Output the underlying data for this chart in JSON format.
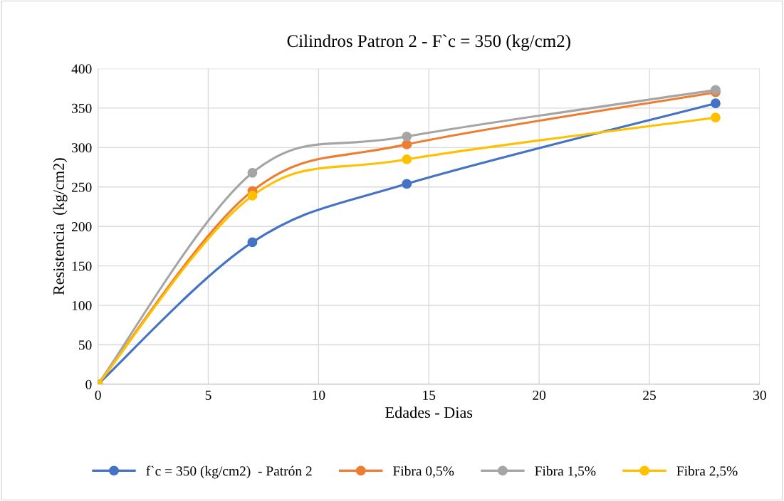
{
  "chart_data": {
    "type": "line",
    "title": "Cilindros Patron 2 - F`c = 350 (kg/cm2)",
    "xlabel": "Edades - Dias",
    "ylabel": "Resistencia  (kg/cm2)",
    "x": [
      0,
      7,
      14,
      28
    ],
    "series": [
      {
        "name": "f`c = 350 (kg/cm2)  - Patrón 2",
        "color": "#4472c4",
        "values": [
          0,
          180,
          254,
          356
        ]
      },
      {
        "name": "Fibra 0,5%",
        "color": "#ed7d31",
        "values": [
          0,
          245,
          304,
          370
        ]
      },
      {
        "name": "Fibra 1,5%",
        "color": "#a5a5a5",
        "values": [
          0,
          268,
          314,
          373
        ]
      },
      {
        "name": "Fibra 2,5%",
        "color": "#ffc000",
        "values": [
          0,
          239,
          285,
          338
        ]
      }
    ],
    "xlim": [
      0,
      30
    ],
    "xticks": [
      0,
      5,
      10,
      15,
      20,
      25,
      30
    ],
    "ylim": [
      0,
      400
    ],
    "yticks": [
      0,
      50,
      100,
      150,
      200,
      250,
      300,
      350,
      400
    ],
    "grid": true,
    "legend": "bottom",
    "marker": "circle",
    "line_style": "solid"
  }
}
